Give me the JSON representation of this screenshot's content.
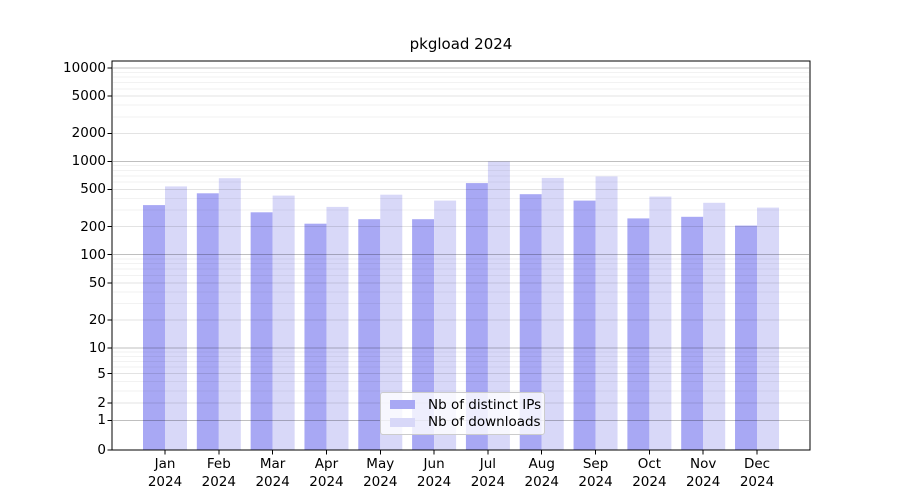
{
  "chart_data": {
    "type": "bar",
    "title": "pkgload 2024",
    "categories": [
      "Jan 2024",
      "Feb 2024",
      "Mar 2024",
      "Apr 2024",
      "May 2024",
      "Jun 2024",
      "Jul 2024",
      "Aug 2024",
      "Sep 2024",
      "Oct 2024",
      "Nov 2024",
      "Dec 2024"
    ],
    "series": [
      {
        "name": "Nb of distinct IPs",
        "color": "#a8a8f4",
        "values": [
          340,
          455,
          285,
          215,
          240,
          240,
          585,
          445,
          380,
          245,
          255,
          205
        ]
      },
      {
        "name": "Nb of downloads",
        "color": "#d8d8f8",
        "values": [
          540,
          660,
          430,
          325,
          440,
          380,
          1000,
          665,
          690,
          420,
          360,
          320
        ]
      }
    ],
    "xlabel": "",
    "ylabel": "",
    "yscale": "symlog",
    "yticks": [
      0,
      1,
      2,
      5,
      10,
      20,
      50,
      100,
      200,
      500,
      1000,
      2000,
      5000,
      10000
    ],
    "ylim": [
      0,
      12000
    ],
    "grid": true,
    "legend_position": "lower center"
  },
  "colors": {
    "spine": "#000000",
    "grid_major_pow10": "rgba(0,0,0,0.25)",
    "grid_major_other": "rgba(0,0,0,0.11)",
    "grid_minor": "rgba(0,0,0,0.05)"
  }
}
